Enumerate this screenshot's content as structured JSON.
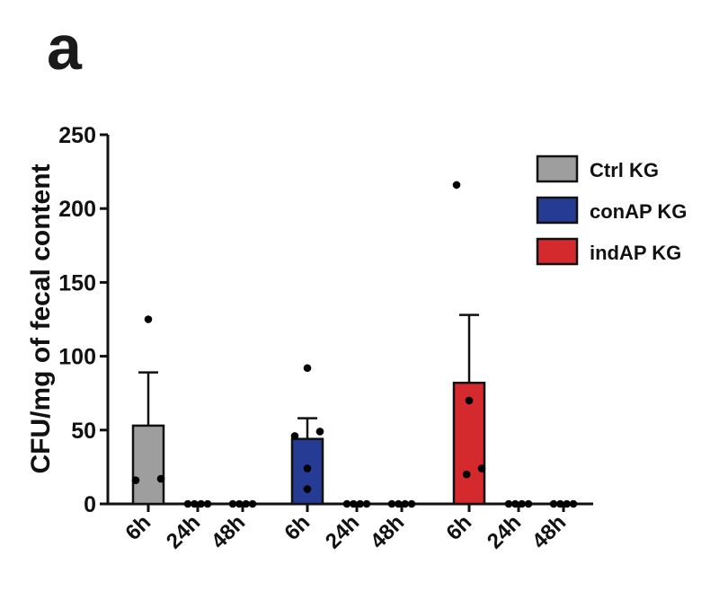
{
  "panel_label": "a",
  "chart_data": {
    "type": "bar",
    "title": "",
    "xlabel": "",
    "ylabel": "CFU/mg of fecal content",
    "ylim": [
      0,
      250
    ],
    "yticks": [
      0,
      50,
      100,
      150,
      200,
      250
    ],
    "grid": false,
    "legend_position": "top-right",
    "legend": [
      "Ctrl KG",
      "conAP KG",
      "indAP KG"
    ],
    "colors": {
      "Ctrl KG": "#9e9e9e",
      "conAP KG": "#253b94",
      "indAP KG": "#d42a2e"
    },
    "time_points": [
      "6h",
      "24h",
      "48h"
    ],
    "groups": [
      {
        "name": "Ctrl KG",
        "bars": [
          {
            "time": "6h",
            "mean": 53,
            "sem": 36,
            "points": [
              125,
              17,
              16
            ]
          },
          {
            "time": "24h",
            "mean": 0,
            "sem": 0,
            "points": [
              0,
              0,
              0,
              0
            ]
          },
          {
            "time": "48h",
            "mean": 0,
            "sem": 0,
            "points": [
              0,
              0,
              0,
              0
            ]
          }
        ]
      },
      {
        "name": "conAP KG",
        "bars": [
          {
            "time": "6h",
            "mean": 44,
            "sem": 14,
            "points": [
              92,
              49,
              46,
              24,
              10
            ]
          },
          {
            "time": "24h",
            "mean": 0,
            "sem": 0,
            "points": [
              0,
              0,
              0,
              0
            ]
          },
          {
            "time": "48h",
            "mean": 0,
            "sem": 0,
            "points": [
              0,
              0,
              0,
              0
            ]
          }
        ]
      },
      {
        "name": "indAP KG",
        "bars": [
          {
            "time": "6h",
            "mean": 82,
            "sem": 46,
            "points": [
              216,
              70,
              24,
              20
            ]
          },
          {
            "time": "24h",
            "mean": 0,
            "sem": 0,
            "points": [
              0,
              0,
              0,
              0
            ]
          },
          {
            "time": "48h",
            "mean": 0,
            "sem": 0,
            "points": [
              0,
              0,
              0,
              0
            ]
          }
        ]
      }
    ]
  }
}
